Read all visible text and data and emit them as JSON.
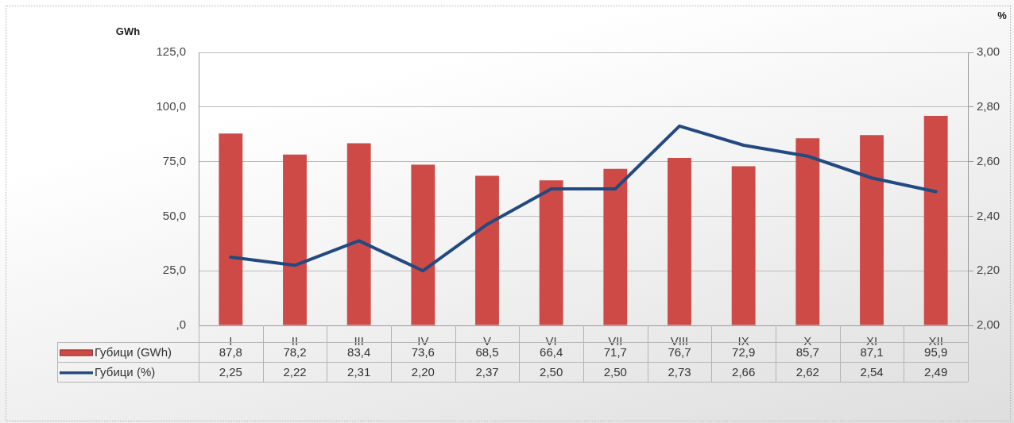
{
  "chart_data": {
    "type": "bar",
    "categories": [
      "I",
      "II",
      "III",
      "IV",
      "V",
      "VI",
      "VII",
      "VIII",
      "IX",
      "X",
      "XI",
      "XII"
    ],
    "ylabel": "GWh",
    "y2label": "%",
    "series": [
      {
        "name": "Губици (GWh)",
        "color": "#cd4a47",
        "values": [
          87.8,
          78.2,
          83.4,
          73.6,
          68.5,
          66.4,
          71.7,
          76.7,
          72.9,
          85.7,
          87.1,
          95.9
        ],
        "value_labels": [
          "87,8",
          "78,2",
          "83,4",
          "73,6",
          "68,5",
          "66,4",
          "71,7",
          "76,7",
          "72,9",
          "85,7",
          "87,1",
          "95,9"
        ]
      },
      {
        "name": "Губици (%)",
        "type": "line",
        "axis": "y2",
        "color": "#234a80",
        "values": [
          2.25,
          2.22,
          2.31,
          2.2,
          2.37,
          2.5,
          2.5,
          2.73,
          2.66,
          2.62,
          2.54,
          2.49
        ],
        "value_labels": [
          "2,25",
          "2,22",
          "2,31",
          "2,20",
          "2,37",
          "2,50",
          "2,50",
          "2,73",
          "2,66",
          "2,62",
          "2,54",
          "2,49"
        ]
      }
    ],
    "ylim": [
      0,
      125
    ],
    "yticks": [
      {
        "value": 0,
        "label": ",0"
      },
      {
        "value": 25,
        "label": "25,0"
      },
      {
        "value": 50,
        "label": "50,0"
      },
      {
        "value": 75,
        "label": "75,0"
      },
      {
        "value": 100,
        "label": "100,0"
      },
      {
        "value": 125,
        "label": "125,0"
      }
    ],
    "y2lim": [
      2,
      3
    ],
    "y2ticks": [
      {
        "value": 2,
        "label": "2,00"
      },
      {
        "value": 2.2,
        "label": "2,20"
      },
      {
        "value": 2.4,
        "label": "2,40"
      },
      {
        "value": 2.6,
        "label": "2,60"
      },
      {
        "value": 2.8,
        "label": "2,80"
      },
      {
        "value": 3,
        "label": "3,00"
      }
    ],
    "grid": "y",
    "legend": "bottom",
    "marker": "none"
  }
}
